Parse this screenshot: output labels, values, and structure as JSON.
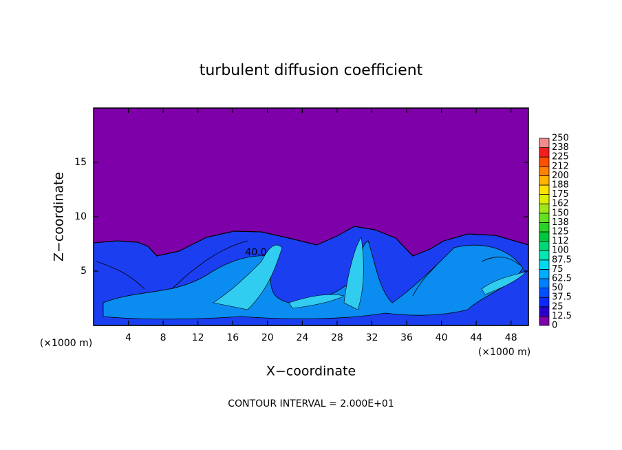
{
  "chart_data": {
    "type": "contour",
    "title": "turbulent diffusion coefficient",
    "x_label": "X−coordinate",
    "y_label": "Z−coordinate",
    "x_unit": "(×1000 m)",
    "x_unit_right": "(×1000 m)",
    "footnote": "CONTOUR INTERVAL = 2.000E+01",
    "annotation": "40.0",
    "xlim": [
      0,
      50
    ],
    "ylim": [
      0,
      20
    ],
    "xticks": [
      4,
      8,
      12,
      16,
      20,
      24,
      28,
      32,
      36,
      40,
      44,
      48
    ],
    "yticks": [
      5,
      10,
      15
    ],
    "colorbar": {
      "levels": [
        0,
        12.5,
        25,
        37.5,
        50,
        62.5,
        75,
        87.5,
        100,
        112,
        125,
        138,
        150,
        162,
        175,
        188,
        200,
        212,
        225,
        238,
        250
      ],
      "colors": [
        "#7d00a8",
        "#2800c8",
        "#0a28ff",
        "#0050ff",
        "#0080ff",
        "#00acff",
        "#00d8f0",
        "#00e6b4",
        "#00d878",
        "#00c83c",
        "#28d228",
        "#64e11e",
        "#a0e61e",
        "#dcf000",
        "#ffe100",
        "#ffb400",
        "#ff8200",
        "#ff5000",
        "#f01e1e",
        "#f08c8c"
      ]
    }
  }
}
